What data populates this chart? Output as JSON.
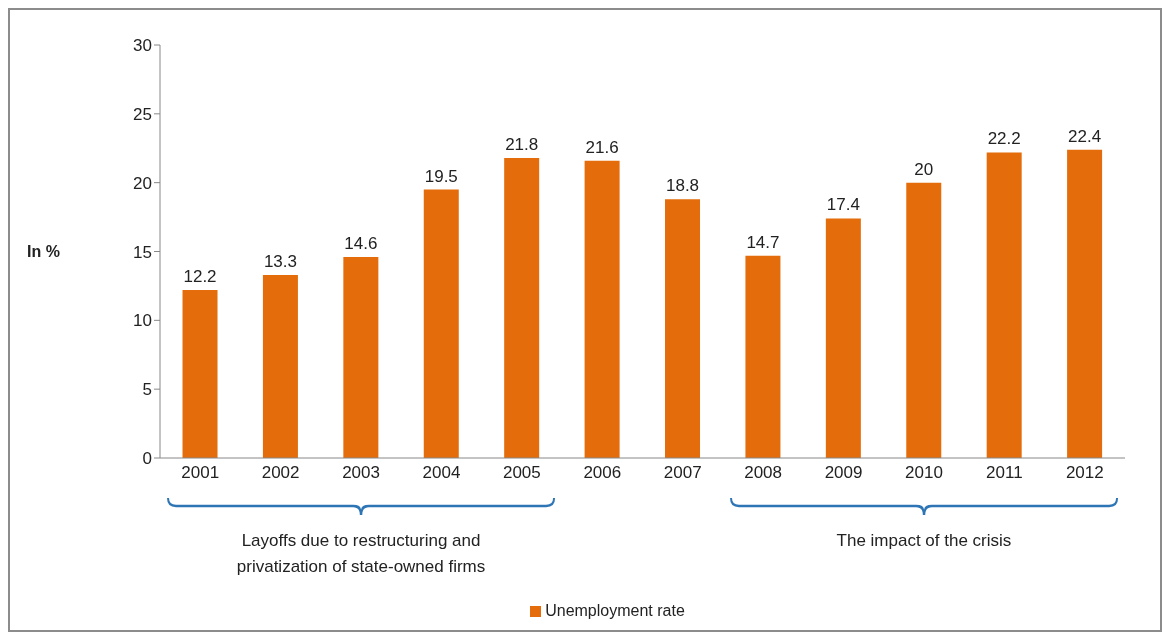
{
  "chart_data": {
    "type": "bar",
    "categories": [
      "2001",
      "2002",
      "2003",
      "2004",
      "2005",
      "2006",
      "2007",
      "2008",
      "2009",
      "2010",
      "2011",
      "2012"
    ],
    "series": [
      {
        "name": "Unemployment rate",
        "color": "#e46c0a",
        "values": [
          12.2,
          13.3,
          14.6,
          19.5,
          21.8,
          21.6,
          18.8,
          14.7,
          17.4,
          20,
          22.2,
          22.4
        ]
      }
    ],
    "ylabel": "In %",
    "ylim": [
      0,
      30
    ],
    "yticks": [
      0,
      5,
      10,
      15,
      20,
      25,
      30
    ],
    "grid": false,
    "legend": "bottom",
    "data_labels": true,
    "annotations": [
      "Layoffs due to restructuring and privatization of state-owned firms",
      "The impact of the crisis"
    ]
  }
}
